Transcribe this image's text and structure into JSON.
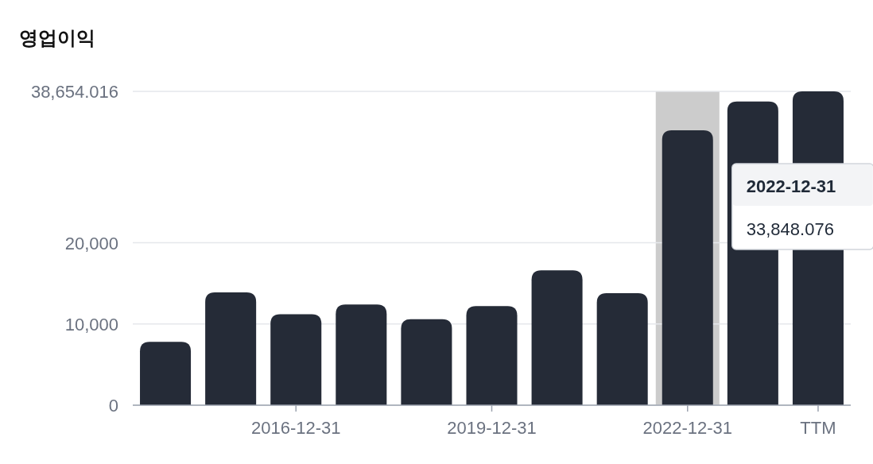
{
  "chart_data": {
    "type": "bar",
    "title": "영업이익",
    "categories": [
      null,
      null,
      "2016-12-31",
      null,
      null,
      "2019-12-31",
      null,
      null,
      "2022-12-31",
      null,
      "TTM"
    ],
    "values": [
      7800,
      13900,
      11200,
      12400,
      10600,
      12200,
      16600,
      13800,
      33850,
      37400,
      38654.016
    ],
    "color": "#252b37",
    "ylim": [
      0,
      38654.016
    ],
    "yticks": [
      0,
      {
        "value": 10000,
        "label": "10,000"
      },
      {
        "value": 20000,
        "label": "20,000"
      },
      {
        "value": 38654.016,
        "label": "38,654.016"
      }
    ],
    "grid": "y",
    "bands": [
      {
        "axis": "x",
        "from": "2022-12-31",
        "to": "2022-12-31",
        "color": "#cccccc"
      }
    ],
    "annotations": [
      "2022-12-31",
      "33,848.076"
    ]
  }
}
